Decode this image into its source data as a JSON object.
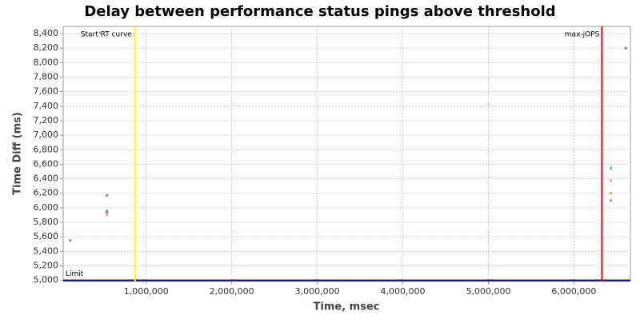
{
  "chart_data": {
    "type": "scatter",
    "title": "Delay between performance status pings above threshold",
    "x_label": "Time, msec",
    "y_label": "Time Diff (ms)",
    "xlim": [
      30000,
      6660000
    ],
    "ylim": [
      4985,
      8500
    ],
    "xticks": [
      {
        "value": 1000000,
        "label": "1,000,000"
      },
      {
        "value": 2000000,
        "label": "2,000,000"
      },
      {
        "value": 3000000,
        "label": "3,000,000"
      },
      {
        "value": 4000000,
        "label": "4,000,000"
      },
      {
        "value": 5000000,
        "label": "5,000,000"
      },
      {
        "value": 6000000,
        "label": "6,000,000"
      }
    ],
    "yticks": [
      {
        "value": 5000,
        "label": "5,000"
      },
      {
        "value": 5200,
        "label": "5,200"
      },
      {
        "value": 5400,
        "label": "5,400"
      },
      {
        "value": 5600,
        "label": "5,600"
      },
      {
        "value": 5800,
        "label": "5,800"
      },
      {
        "value": 6000,
        "label": "6,000"
      },
      {
        "value": 6200,
        "label": "6,200"
      },
      {
        "value": 6400,
        "label": "6,400"
      },
      {
        "value": 6600,
        "label": "6,600"
      },
      {
        "value": 6800,
        "label": "6,800"
      },
      {
        "value": 7000,
        "label": "7,000"
      },
      {
        "value": 7200,
        "label": "7,200"
      },
      {
        "value": 7400,
        "label": "7,400"
      },
      {
        "value": 7600,
        "label": "7,600"
      },
      {
        "value": 7800,
        "label": "7,800"
      },
      {
        "value": 8000,
        "label": "8,000"
      },
      {
        "value": 8200,
        "label": "8,200"
      },
      {
        "value": 8400,
        "label": "8,400"
      }
    ],
    "grid": true,
    "x": [
      112000,
      467000,
      542000,
      542000,
      542000,
      542000,
      6430000,
      6430000,
      6430000,
      6430000,
      6430000,
      6607000
    ],
    "values": [
      5550,
      8410,
      6170,
      5955,
      5935,
      5900,
      6560,
      6540,
      6375,
      6200,
      6100,
      8200
    ],
    "colors": [
      "#8c8c8c",
      "#a08c9c",
      "#8c8c9c",
      "#a0788c",
      "#8c8c8c",
      "#d8a0d8",
      "#a0d8b4",
      "#8cb4a0",
      "#e0a0e0",
      "#c8b464",
      "#e08080",
      "#8c8c8c"
    ],
    "vlines": [
      {
        "label": "Start RT curve",
        "x": 870000,
        "color": "#ffff00"
      },
      {
        "label": "max-jOPS",
        "x": 6327000,
        "color": "#ff0000"
      }
    ],
    "hlines": [
      {
        "label": "Limit",
        "y": 5000,
        "color": "#000080"
      }
    ]
  }
}
